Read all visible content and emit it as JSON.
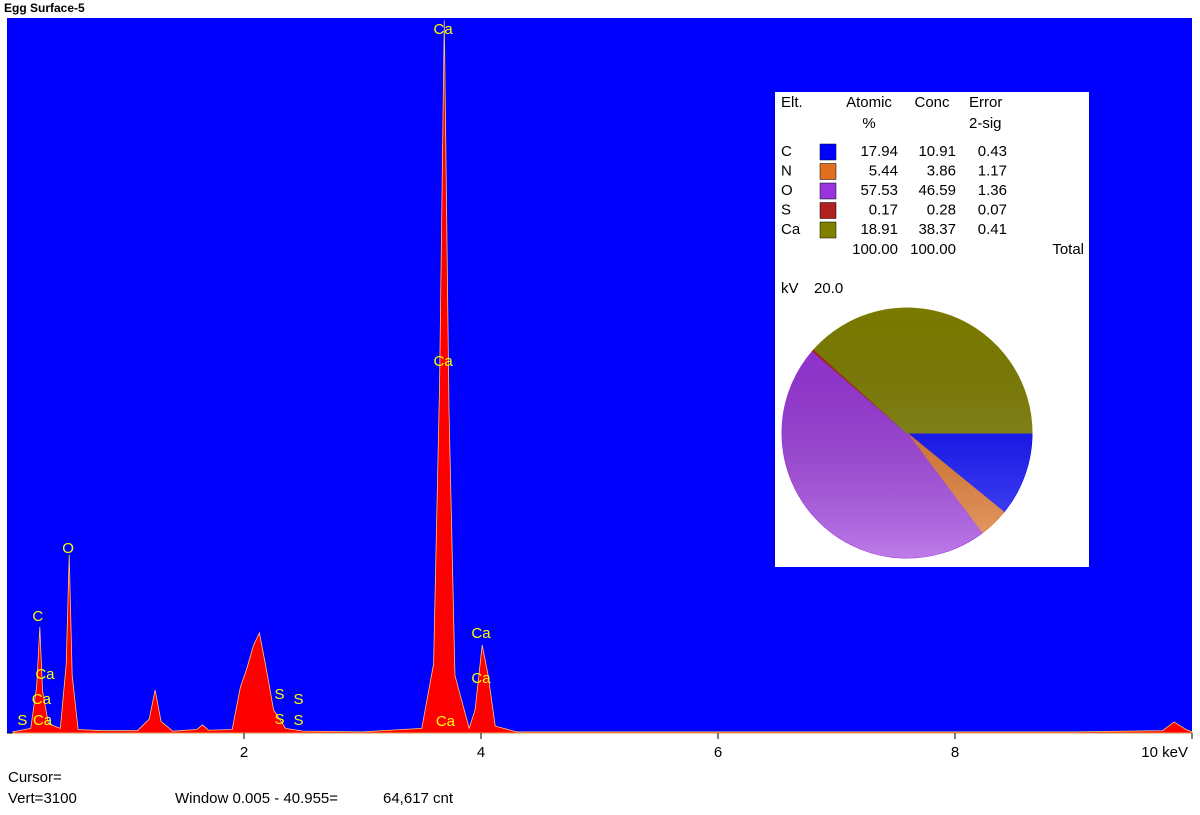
{
  "window_title": "Egg Surface-5",
  "spectrum": {
    "x": [
      0.05,
      0.2,
      0.25,
      0.277,
      0.3,
      0.35,
      0.45,
      0.5,
      0.525,
      0.55,
      0.6,
      0.8,
      1.1,
      1.2,
      1.25,
      1.3,
      1.4,
      1.6,
      1.65,
      1.7,
      1.9,
      1.97,
      2.02,
      2.08,
      2.13,
      2.18,
      2.25,
      2.35,
      2.5,
      3.0,
      3.5,
      3.6,
      3.65,
      3.69,
      3.73,
      3.78,
      3.9,
      3.95,
      4.01,
      4.06,
      4.12,
      4.3,
      5,
      6,
      7,
      8,
      9,
      9.75,
      9.85,
      9.95,
      10
    ],
    "counts": [
      5,
      20,
      200,
      460,
      180,
      40,
      20,
      300,
      772,
      250,
      15,
      10,
      10,
      60,
      186,
      50,
      8,
      15,
      35,
      12,
      15,
      200,
      273,
      380,
      434,
      300,
      100,
      20,
      8,
      5,
      20,
      300,
      1500,
      3090,
      1400,
      250,
      20,
      100,
      382,
      250,
      30,
      5,
      5,
      5,
      5,
      5,
      5,
      10,
      48,
      15,
      5
    ],
    "xlim": [
      0,
      10
    ],
    "ylim": [
      0,
      3100
    ],
    "xticks": [
      2,
      4,
      6,
      8,
      {
        "value": 10,
        "label": "10 keV"
      }
    ],
    "color": "#ff0000",
    "peak_labels": [
      {
        "text": "Ca",
        "x": 3.68,
        "y": 3048
      },
      {
        "text": "Ca",
        "x": 3.68,
        "y": 1609
      },
      {
        "text": "Ca",
        "x": 3.7,
        "y": 48
      },
      {
        "text": "O",
        "x": 0.515,
        "y": 798
      },
      {
        "text": "C",
        "x": 0.26,
        "y": 503
      },
      {
        "text": "Ca",
        "x": 0.32,
        "y": 251
      },
      {
        "text": "Ca",
        "x": 0.29,
        "y": 143
      },
      {
        "text": "S",
        "x": 0.13,
        "y": 52
      },
      {
        "text": "Ca",
        "x": 0.3,
        "y": 52
      },
      {
        "text": "S",
        "x": 2.3,
        "y": 165
      },
      {
        "text": "S",
        "x": 2.46,
        "y": 143
      },
      {
        "text": "S",
        "x": 2.3,
        "y": 56
      },
      {
        "text": "S",
        "x": 2.46,
        "y": 52
      },
      {
        "text": "Ca",
        "x": 4.0,
        "y": 429
      },
      {
        "text": "Ca",
        "x": 4.0,
        "y": 234
      }
    ]
  },
  "table": {
    "headers": [
      [
        "Elt."
      ],
      [
        "Atomic",
        "%"
      ],
      [
        "Conc"
      ],
      [
        "Error",
        "2-sig"
      ]
    ],
    "rows": [
      {
        "element": "C",
        "color": "#0000ff",
        "atomic": 17.94,
        "conc": 10.91,
        "error": 0.43
      },
      {
        "element": "N",
        "color": "#e07020",
        "atomic": 5.44,
        "conc": 3.86,
        "error": 1.17
      },
      {
        "element": "O",
        "color": "#9933dd",
        "atomic": 57.53,
        "conc": 46.59,
        "error": 1.36
      },
      {
        "element": "S",
        "color": "#b02020",
        "atomic": 0.17,
        "conc": 0.28,
        "error": 0.07
      },
      {
        "element": "Ca",
        "color": "#808000",
        "atomic": 18.91,
        "conc": 38.37,
        "error": 0.41
      }
    ],
    "totals": [
      "100.00",
      "100.00",
      "Total"
    ],
    "kv_label": "kV",
    "kv_value": "20.0"
  },
  "status": {
    "cursor": "Cursor=",
    "vert": "Vert=3100",
    "window": "Window 0.005 - 40.955=",
    "count": "64,617 cnt"
  }
}
